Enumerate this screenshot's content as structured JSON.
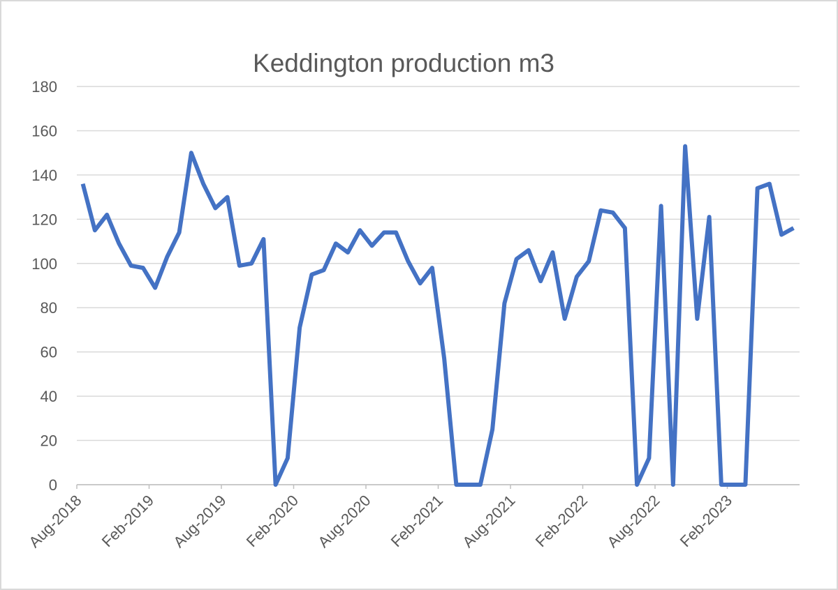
{
  "chart_data": {
    "type": "line",
    "title": "Keddington production m3",
    "categories": [
      "Aug-2018",
      null,
      null,
      null,
      null,
      null,
      "Feb-2019",
      null,
      null,
      null,
      null,
      null,
      "Aug-2019",
      null,
      null,
      null,
      null,
      null,
      "Feb-2020",
      null,
      null,
      null,
      null,
      null,
      "Aug-2020",
      null,
      null,
      null,
      null,
      null,
      "Feb-2021",
      null,
      null,
      null,
      null,
      null,
      "Aug-2021",
      null,
      null,
      null,
      null,
      null,
      "Feb-2022",
      null,
      null,
      null,
      null,
      null,
      "Aug-2022",
      null,
      null,
      null,
      null,
      null,
      "Feb-2023",
      null,
      null,
      null,
      null,
      null
    ],
    "series": [
      {
        "name": "Keddington production m3",
        "color": "#4472c4",
        "values": [
          136,
          115,
          122,
          109,
          99,
          98,
          89,
          103,
          114,
          150,
          136,
          125,
          130,
          99,
          100,
          111,
          0,
          12,
          71,
          95,
          97,
          109,
          105,
          115,
          108,
          114,
          114,
          101,
          91,
          98,
          57,
          0,
          0,
          0,
          25,
          82,
          102,
          106,
          92,
          105,
          75,
          94,
          101,
          124,
          123,
          116,
          0,
          12,
          126,
          0,
          153,
          75,
          121,
          0,
          0,
          0,
          134,
          136,
          113,
          116
        ]
      }
    ],
    "ylim": [
      0,
      180
    ],
    "yticks": [
      0,
      20,
      40,
      60,
      80,
      100,
      120,
      140,
      160,
      180
    ],
    "grid": true
  }
}
